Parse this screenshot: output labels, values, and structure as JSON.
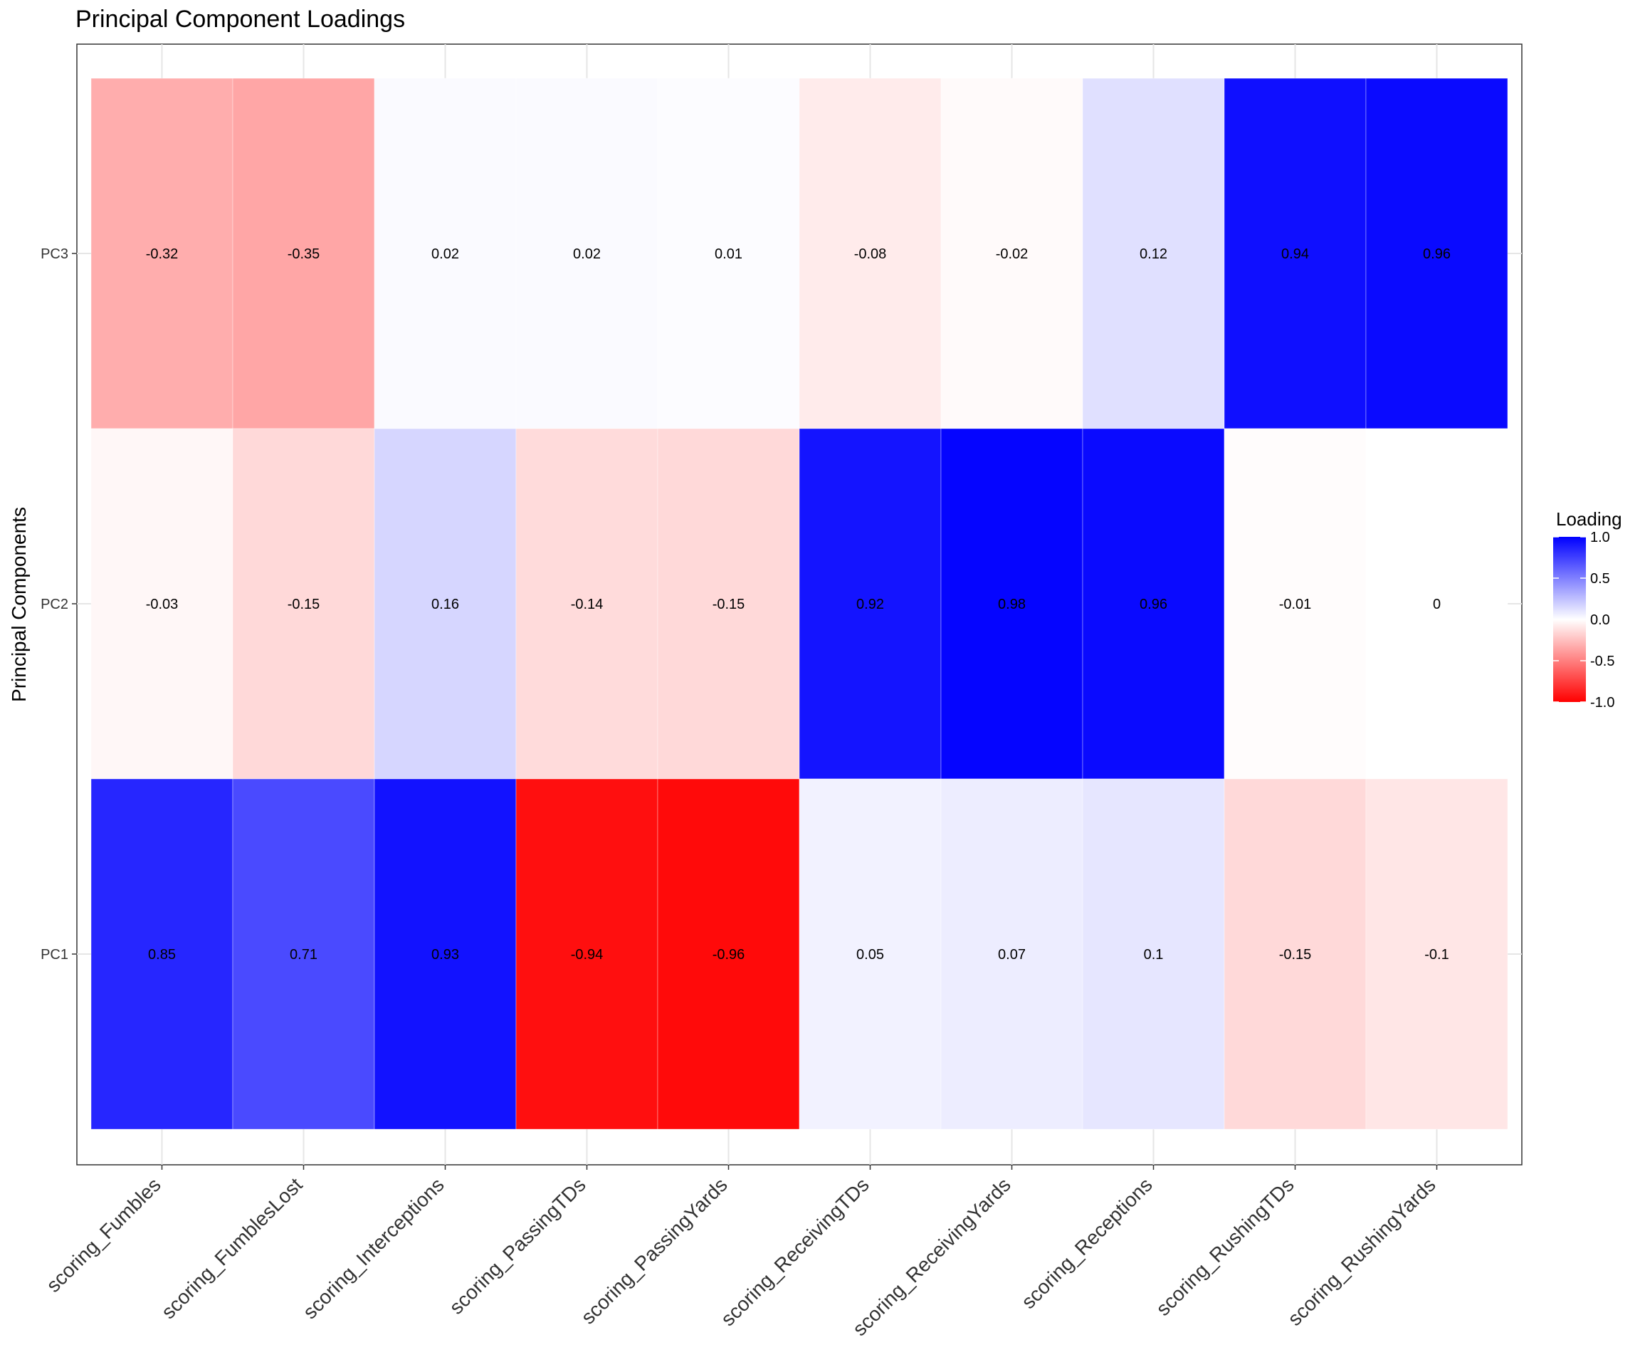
{
  "chart_data": {
    "type": "heatmap",
    "title": "Principal Component Loadings",
    "xlabel": "",
    "ylabel": "Principal Components",
    "x_categories": [
      "scoring_Fumbles",
      "scoring_FumblesLost",
      "scoring_Interceptions",
      "scoring_PassingTDs",
      "scoring_PassingYards",
      "scoring_ReceivingTDs",
      "scoring_ReceivingYards",
      "scoring_Receptions",
      "scoring_RushingTDs",
      "scoring_RushingYards"
    ],
    "y_categories": [
      "PC1",
      "PC2",
      "PC3"
    ],
    "values": {
      "PC1": [
        0.85,
        0.71,
        0.93,
        -0.94,
        -0.96,
        0.05,
        0.07,
        0.1,
        -0.15,
        -0.1
      ],
      "PC2": [
        -0.03,
        -0.15,
        0.16,
        -0.14,
        -0.15,
        0.92,
        0.98,
        0.96,
        -0.01,
        0
      ],
      "PC3": [
        -0.32,
        -0.35,
        0.02,
        0.02,
        0.01,
        -0.08,
        -0.02,
        0.12,
        0.94,
        0.96
      ]
    },
    "labels": {
      "PC1": [
        "0.85",
        "0.71",
        "0.93",
        "-0.94",
        "-0.96",
        "0.05",
        "0.07",
        "0.1",
        "-0.15",
        "-0.1"
      ],
      "PC2": [
        "-0.03",
        "-0.15",
        "0.16",
        "-0.14",
        "-0.15",
        "0.92",
        "0.98",
        "0.96",
        "-0.01",
        "0"
      ],
      "PC3": [
        "-0.32",
        "-0.35",
        "0.02",
        "0.02",
        "0.01",
        "-0.08",
        "-0.02",
        "0.12",
        "0.94",
        "0.96"
      ]
    },
    "color_scale": {
      "low": "#ff0000",
      "mid": "#ffffff",
      "high": "#0000ff",
      "limits": [
        -1,
        1
      ]
    },
    "legend": {
      "title": "Loading",
      "ticks": [
        "1.0",
        "0.5",
        "0.0",
        "-0.5",
        "-1.0"
      ],
      "tick_values": [
        1,
        0.5,
        0,
        -0.5,
        -1
      ],
      "position": "right"
    },
    "grid": true
  }
}
